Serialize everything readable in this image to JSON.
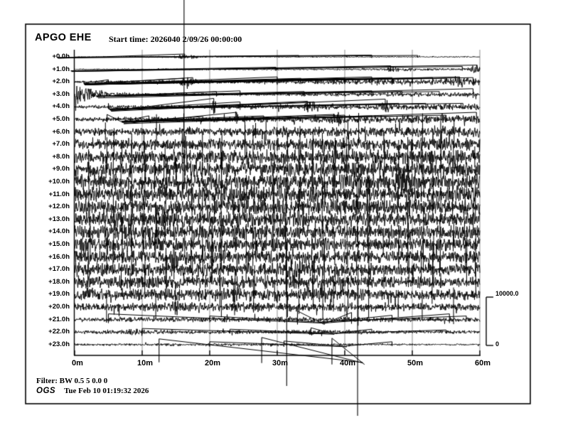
{
  "header": {
    "station": "APGO EHE",
    "start_time": "Start time: 2026040  2/09/26 00:00:00"
  },
  "footer": {
    "filter": "Filter: BW 0.5 5 0.0 0",
    "agency": "OGS",
    "timestamp": "Tue Feb 10 01:19:32 2026"
  },
  "scale_bar": {
    "max": "10000.0",
    "min": "0"
  },
  "chart_data": {
    "type": "line",
    "subtype": "helicorder-seismogram",
    "title": "APGO EHE",
    "start_time": "2026040 2/09/26 00:00:00",
    "xlabel_unit": "minutes",
    "x_ticks": [
      "0m",
      "10m",
      "20m",
      "30m",
      "40m",
      "50m",
      "60m"
    ],
    "x_tick_minutes": [
      0,
      10,
      20,
      30,
      40,
      50,
      60
    ],
    "x_range_minutes": [
      0,
      60
    ],
    "row_duration_minutes": 60,
    "amplitude_scale": {
      "max": 10000.0,
      "min": 0
    },
    "grid": "vertical gray lines every 10 minutes",
    "legend_position": "none",
    "spike_columns": [
      2.1,
      4.7,
      5.8,
      7.0,
      8.4,
      10.3,
      12.0,
      13.4,
      14.8,
      16.1,
      17.4,
      18.8,
      20.5,
      21.6,
      23.7,
      25.3,
      26.6,
      28.2,
      29.5,
      31.4,
      33.2,
      35.3,
      36.8,
      38.4,
      40.5,
      41.9,
      43.5,
      45.8,
      47.9,
      49.5,
      51.5,
      53.0,
      54.2,
      56.0,
      57.9,
      59.2
    ],
    "long_spikes": [
      [
        16.2,
        0,
        230
      ],
      [
        31.4,
        340,
        543
      ],
      [
        41.9,
        400,
        585
      ]
    ],
    "rows": [
      {
        "label": "+0.0h",
        "env": [
          0.6,
          0.6,
          0.6,
          1.5,
          1.1,
          0.6,
          0.6,
          0.6,
          0.7,
          0.7,
          0.7,
          0.7,
          0.7
        ],
        "events": [
          [
            16.5,
            1.2,
            2
          ]
        ],
        "spikes": [
          [
            16.3,
            4,
            2
          ],
          [
            33.2,
            2,
            1
          ],
          [
            44,
            2.5,
            1.5
          ],
          [
            50.8,
            2,
            1
          ]
        ]
      },
      {
        "label": "+1.0h",
        "env": [
          0.7,
          0.7,
          0.8,
          0.9,
          0.9,
          0.9,
          1.0,
          0.9,
          0.9,
          1.1,
          2.2,
          1.2,
          1.6
        ],
        "events": [
          [
            47,
            2.5,
            1.2
          ],
          [
            59,
            4,
            1
          ]
        ],
        "spikes": [
          [
            29.8,
            3,
            2
          ],
          [
            46.8,
            5,
            3
          ],
          [
            57.4,
            4,
            2
          ],
          [
            59.6,
            6,
            3
          ]
        ]
      },
      {
        "label": "+2.0h",
        "env": [
          1.4,
          1.5,
          1.8,
          2.8,
          2.3,
          2.0,
          2.2,
          2.4,
          2.8,
          3.2,
          3.4,
          3.8,
          4.2
        ],
        "events": [
          [
            16.8,
            3,
            1.5
          ],
          [
            57,
            3,
            2
          ]
        ],
        "spikes": [
          [
            5,
            3,
            2
          ],
          [
            16.2,
            5,
            3
          ],
          [
            17.5,
            6,
            3
          ],
          [
            30,
            7,
            4
          ],
          [
            33.5,
            5,
            3
          ],
          [
            36,
            4,
            3
          ],
          [
            40,
            5,
            3
          ],
          [
            44,
            7,
            4
          ],
          [
            47,
            6,
            4
          ],
          [
            50,
            5,
            3
          ],
          [
            53,
            6,
            4
          ],
          [
            55,
            5,
            3
          ],
          [
            57,
            7,
            4
          ],
          [
            59,
            6,
            4
          ]
        ]
      },
      {
        "label": "+3.0h",
        "env": [
          8,
          3.5,
          1.8,
          1.5,
          1.5,
          1.6,
          1.8,
          2.0,
          2.3,
          2.4,
          2.6,
          2.8,
          3.0
        ],
        "events": [
          [
            1.2,
            4,
            1.5
          ]
        ],
        "spikes": [
          [
            21,
            4,
            3
          ],
          [
            24.5,
            5,
            3
          ],
          [
            34,
            4,
            3
          ],
          [
            44,
            5,
            3
          ],
          [
            48.5,
            4,
            3
          ],
          [
            54,
            4,
            2
          ],
          [
            59,
            8,
            5
          ]
        ]
      },
      {
        "label": "+4.0h",
        "env": [
          2.0,
          2.0,
          2.2,
          2.4,
          2.5,
          2.6,
          2.8,
          3.0,
          3.0,
          3.3,
          3.4,
          3.8,
          4.0
        ],
        "events": [
          [
            20.6,
            8,
            0.4
          ],
          [
            34.8,
            5,
            1
          ],
          [
            46,
            6,
            0.8
          ]
        ],
        "spikes": [
          [
            5,
            5,
            3
          ],
          [
            20.6,
            12,
            6
          ],
          [
            24.5,
            7,
            4
          ],
          [
            30.5,
            5,
            3
          ],
          [
            34.5,
            8,
            5
          ],
          [
            35.5,
            7,
            4
          ],
          [
            46,
            11,
            6
          ],
          [
            48,
            5,
            3
          ],
          [
            52,
            5,
            3
          ],
          [
            57.5,
            5,
            3
          ]
        ]
      },
      {
        "label": "+5.0h",
        "env": [
          2.5,
          2.8,
          3.0,
          3.0,
          3.1,
          3.4,
          3.5,
          3.9,
          4.3,
          4.4,
          4.8,
          5.0,
          5.0
        ],
        "events": [
          [
            24,
            6,
            0.5
          ],
          [
            39,
            4,
            1
          ]
        ],
        "spikes": [
          [
            4.8,
            7,
            4
          ],
          [
            11,
            5,
            3
          ],
          [
            19,
            4,
            3
          ],
          [
            24,
            10,
            6
          ],
          [
            28,
            5,
            3
          ],
          [
            38.5,
            7,
            4
          ],
          [
            40,
            6,
            4
          ],
          [
            44,
            5,
            3
          ],
          [
            50,
            5,
            3
          ],
          [
            55,
            6,
            4
          ],
          [
            59.5,
            10,
            6
          ]
        ]
      },
      {
        "label": "+6.0h",
        "env": [
          4.0,
          4.4,
          4.8,
          5.0,
          5.0,
          5.4,
          5.5,
          5.8,
          6.0,
          6.0,
          6.3,
          6.5,
          6.8
        ],
        "events": [
          [
            31.5,
            4,
            0.8
          ]
        ],
        "spikes": []
      },
      {
        "label": "+7.0h",
        "env": [
          5.8,
          6.0,
          6.3,
          6.5,
          6.8,
          7.0,
          7.0,
          7.3,
          7.4,
          7.5,
          7.8,
          7.8,
          8.0
        ],
        "events": [],
        "spikes": []
      },
      {
        "label": "+8.0h",
        "env": [
          7.4,
          7.8,
          8.0,
          8.0,
          8.0,
          8.3,
          8.4,
          8.5,
          8.8,
          8.8,
          9.0,
          9.0,
          9.0
        ],
        "events": [],
        "spikes": []
      },
      {
        "label": "+9.0h",
        "env": [
          8.0,
          8.4,
          8.8,
          9.0,
          9.0,
          9.0,
          9.3,
          9.4,
          9.4,
          9.5,
          9.8,
          9.5,
          9.2
        ],
        "events": [],
        "spikes": []
      },
      {
        "label": "+10.0h",
        "env": [
          8.8,
          9.0,
          9.0,
          9.3,
          9.4,
          9.4,
          9.5,
          9.8,
          10.0,
          11.5,
          13.0,
          9.8,
          9.2
        ],
        "events": [
          [
            48.3,
            5,
            1.8
          ]
        ],
        "spikes": []
      },
      {
        "label": "+11.0h",
        "env": [
          9.0,
          9.4,
          9.4,
          9.5,
          9.8,
          10.0,
          10.0,
          9.8,
          9.6,
          9.5,
          9.5,
          9.4,
          9.0
        ],
        "events": [],
        "spikes": []
      },
      {
        "label": "+12.0h",
        "env": [
          9.0,
          9.0,
          9.4,
          9.5,
          9.5,
          9.5,
          9.5,
          9.5,
          9.4,
          9.2,
          9.0,
          9.0,
          9.0
        ],
        "events": [],
        "spikes": []
      },
      {
        "label": "+13.0h",
        "env": [
          8.6,
          9.0,
          9.0,
          9.0,
          9.4,
          9.4,
          9.0,
          9.0,
          9.0,
          9.0,
          8.6,
          8.6,
          8.5
        ],
        "events": [],
        "spikes": []
      },
      {
        "label": "+14.0h",
        "env": [
          8.5,
          8.5,
          9.0,
          9.0,
          9.0,
          9.0,
          8.8,
          8.6,
          8.5,
          8.5,
          8.4,
          8.2,
          8.0
        ],
        "events": [],
        "spikes": []
      },
      {
        "label": "+15.0h",
        "env": [
          8.8,
          8.5,
          8.5,
          8.5,
          8.5,
          8.4,
          8.4,
          8.4,
          8.2,
          8.0,
          8.0,
          8.0,
          8.0
        ],
        "events": [
          [
            1.5,
            5,
            0.8
          ],
          [
            24,
            4,
            0.7
          ]
        ],
        "spikes": []
      },
      {
        "label": "+16.0h",
        "env": [
          8.0,
          8.0,
          8.0,
          9.5,
          8.6,
          8.0,
          8.0,
          8.0,
          8.0,
          7.8,
          7.6,
          7.5,
          7.5
        ],
        "events": [
          [
            14.6,
            5,
            1.2
          ]
        ],
        "spikes": []
      },
      {
        "label": "+17.0h",
        "env": [
          8.0,
          8.0,
          8.0,
          8.0,
          8.0,
          8.0,
          10.0,
          8.6,
          8.0,
          7.8,
          7.5,
          7.4,
          7.4
        ],
        "events": [
          [
            32,
            6,
            1.5
          ]
        ],
        "spikes": []
      },
      {
        "label": "+18.0h",
        "env": [
          7.8,
          7.8,
          7.8,
          7.8,
          7.6,
          7.5,
          7.5,
          7.4,
          7.4,
          7.2,
          7.0,
          7.0,
          7.0
        ],
        "events": [],
        "spikes": []
      },
      {
        "label": "+19.0h",
        "env": [
          7.0,
          7.0,
          7.0,
          7.0,
          7.3,
          7.6,
          7.5,
          7.0,
          7.0,
          6.6,
          6.5,
          6.4,
          6.0
        ],
        "events": [
          [
            24,
            4,
            0.7
          ],
          [
            37,
            4,
            1
          ]
        ],
        "spikes": []
      },
      {
        "label": "+20.0h",
        "env": [
          5.0,
          5.4,
          5.0,
          5.0,
          5.0,
          5.8,
          5.0,
          5.0,
          5.6,
          5.0,
          4.5,
          4.4,
          4.0
        ],
        "events": [
          [
            15,
            5,
            0.7
          ],
          [
            40.5,
            4,
            0.7
          ]
        ],
        "spikes": []
      },
      {
        "label": "+21.0h",
        "env": [
          2.4,
          2.8,
          3.0,
          3.0,
          3.0,
          3.0,
          3.4,
          3.4,
          3.0,
          3.0,
          2.6,
          2.5,
          2.4
        ],
        "events": [],
        "spikes": [
          [
            5,
            8,
            5
          ],
          [
            20,
            5,
            4
          ],
          [
            33,
            12,
            7
          ],
          [
            41,
            10,
            6
          ],
          [
            47,
            6,
            4
          ],
          [
            55.5,
            8,
            5
          ],
          [
            58,
            5,
            3
          ]
        ]
      },
      {
        "label": "+22.0h",
        "env": [
          2.0,
          2.4,
          2.8,
          2.4,
          2.0,
          2.2,
          2.4,
          2.8,
          2.4,
          2.0,
          2.0,
          1.9,
          1.8
        ],
        "events": [
          [
            8.7,
            2.5,
            1.2
          ],
          [
            35,
            2,
            0.6
          ]
        ],
        "spikes": [
          [
            10,
            5,
            3
          ],
          [
            23,
            4,
            2
          ],
          [
            35,
            6,
            3
          ],
          [
            44,
            4,
            2
          ],
          [
            55,
            3,
            2
          ]
        ]
      },
      {
        "label": "+23.0h",
        "env": [
          1.2,
          1.4,
          1.5,
          1.7,
          1.5,
          1.5,
          1.9,
          1.5,
          1.2,
          1.2,
          1.1,
          1.0,
          1.0
        ],
        "events": [],
        "spikes": [
          [
            12.5,
            8,
            25
          ],
          [
            27.7,
            10,
            26
          ],
          [
            38.1,
            9,
            28
          ],
          [
            20,
            4,
            3
          ],
          [
            31,
            5,
            3
          ],
          [
            47,
            4,
            2
          ]
        ]
      }
    ]
  }
}
